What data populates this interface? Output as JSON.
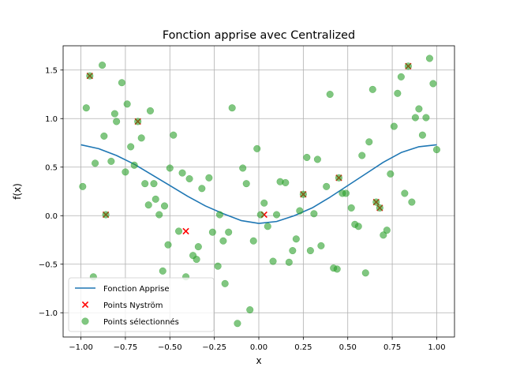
{
  "chart_data": {
    "type": "scatter",
    "title": "Fonction apprise avec Centralized",
    "xlabel": "x",
    "ylabel": "f(x)",
    "xlim": [
      -1.1,
      1.1
    ],
    "ylim": [
      -1.25,
      1.75
    ],
    "xticks": [
      -1.0,
      -0.75,
      -0.5,
      -0.25,
      0.0,
      0.25,
      0.5,
      0.75,
      1.0
    ],
    "xtick_labels": [
      "−1.00",
      "−0.75",
      "−0.50",
      "−0.25",
      "0.00",
      "0.25",
      "0.50",
      "0.75",
      "1.00"
    ],
    "yticks": [
      -1.0,
      -0.5,
      0.0,
      0.5,
      1.0,
      1.5
    ],
    "ytick_labels": [
      "−1.0",
      "−0.5",
      "0.0",
      "0.5",
      "1.0",
      "1.5"
    ],
    "grid": true,
    "legend_position": "bottom-left",
    "colors": {
      "line": "#1f77b4",
      "nystrom": "#ff0000",
      "selected": "#2ca02c"
    },
    "series": [
      {
        "name": "Fonction Apprise",
        "kind": "line",
        "x": [
          -1.0,
          -0.9,
          -0.8,
          -0.7,
          -0.6,
          -0.5,
          -0.4,
          -0.3,
          -0.2,
          -0.1,
          0.0,
          0.1,
          0.2,
          0.3,
          0.4,
          0.5,
          0.6,
          0.7,
          0.8,
          0.9,
          1.0
        ],
        "y": [
          0.73,
          0.69,
          0.62,
          0.53,
          0.42,
          0.31,
          0.2,
          0.1,
          0.02,
          -0.05,
          -0.08,
          -0.06,
          0.0,
          0.08,
          0.19,
          0.31,
          0.43,
          0.55,
          0.65,
          0.71,
          0.73
        ]
      },
      {
        "name": "Points Nyström",
        "kind": "scatter-x",
        "x": [
          -0.95,
          -0.86,
          -0.68,
          -0.41,
          0.03,
          0.25,
          0.45,
          0.66,
          0.68,
          0.84
        ],
        "y": [
          1.44,
          0.01,
          0.97,
          -0.16,
          0.01,
          0.22,
          0.39,
          0.14,
          0.08,
          1.54
        ]
      },
      {
        "name": "Points sélectionnés",
        "kind": "scatter-dot",
        "x": [
          -0.99,
          -0.97,
          -0.95,
          -0.93,
          -0.92,
          -0.88,
          -0.87,
          -0.86,
          -0.83,
          -0.81,
          -0.8,
          -0.77,
          -0.75,
          -0.74,
          -0.72,
          -0.7,
          -0.68,
          -0.66,
          -0.64,
          -0.62,
          -0.61,
          -0.59,
          -0.58,
          -0.56,
          -0.54,
          -0.53,
          -0.51,
          -0.5,
          -0.48,
          -0.45,
          -0.43,
          -0.41,
          -0.39,
          -0.37,
          -0.35,
          -0.34,
          -0.32,
          -0.28,
          -0.26,
          -0.23,
          -0.22,
          -0.2,
          -0.19,
          -0.17,
          -0.15,
          -0.12,
          -0.09,
          -0.07,
          -0.05,
          -0.03,
          -0.01,
          0.01,
          0.03,
          0.05,
          0.08,
          0.1,
          0.12,
          0.15,
          0.17,
          0.19,
          0.21,
          0.23,
          0.25,
          0.27,
          0.29,
          0.31,
          0.33,
          0.35,
          0.38,
          0.4,
          0.42,
          0.44,
          0.45,
          0.47,
          0.49,
          0.52,
          0.54,
          0.56,
          0.58,
          0.6,
          0.62,
          0.64,
          0.66,
          0.68,
          0.7,
          0.72,
          0.74,
          0.76,
          0.78,
          0.8,
          0.82,
          0.84,
          0.86,
          0.88,
          0.9,
          0.92,
          0.94,
          0.96,
          0.98,
          1.0
        ],
        "y": [
          0.3,
          1.11,
          1.44,
          -0.63,
          0.54,
          1.55,
          0.82,
          0.01,
          0.56,
          1.05,
          0.97,
          1.37,
          0.45,
          1.15,
          0.71,
          0.52,
          0.97,
          0.8,
          0.33,
          0.11,
          1.08,
          0.33,
          0.17,
          0.01,
          -0.57,
          0.1,
          -0.3,
          0.49,
          0.83,
          -0.16,
          0.44,
          -0.63,
          0.38,
          -0.41,
          -0.45,
          -0.32,
          0.28,
          0.39,
          -0.17,
          -0.52,
          0.01,
          -0.26,
          -0.7,
          -0.17,
          1.11,
          -1.11,
          0.49,
          0.33,
          -0.97,
          -0.26,
          0.69,
          0.01,
          0.13,
          -0.11,
          -0.47,
          0.01,
          0.35,
          0.34,
          -0.48,
          -0.36,
          -0.24,
          0.05,
          0.22,
          0.6,
          -0.36,
          0.02,
          0.58,
          -0.31,
          0.3,
          1.25,
          -0.54,
          -0.55,
          0.39,
          0.23,
          0.23,
          0.08,
          -0.09,
          -0.11,
          0.62,
          -0.59,
          0.76,
          1.3,
          0.14,
          0.08,
          -0.2,
          -0.15,
          0.43,
          0.92,
          1.26,
          1.43,
          0.23,
          1.54,
          0.14,
          1.01,
          1.1,
          0.83,
          1.01,
          1.62,
          1.36,
          0.68
        ]
      }
    ]
  }
}
